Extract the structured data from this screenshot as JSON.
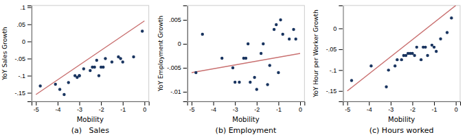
{
  "chart_data": [
    {
      "type": "scatter",
      "title": "(a)   Sales",
      "xlabel": "Mobility",
      "ylabel": "YoY Sales Growth",
      "xlim": [
        -5.2,
        0.2
      ],
      "ylim": [
        -0.175,
        0.105
      ],
      "xticks": [
        -5,
        -4,
        -3,
        -2,
        -1,
        0
      ],
      "yticks": [
        {
          "value": -0.15,
          "label": "-.15"
        },
        {
          "value": -0.1,
          "label": "-.1"
        },
        {
          "value": -0.05,
          "label": "-.05"
        },
        0,
        {
          "value": 0.05,
          "label": ".05"
        },
        {
          "value": 0.1,
          "label": ".1"
        }
      ],
      "grid": false,
      "series": [
        {
          "type": "scatter",
          "color": "#1a3560",
          "x": [
            -4.8,
            -4.1,
            -3.9,
            -3.7,
            -3.5,
            -3.2,
            -3.1,
            -3.0,
            -3.0,
            -2.8,
            -2.5,
            -2.4,
            -2.3,
            -2.2,
            -2.1,
            -2.0,
            -1.9,
            -1.8,
            -1.5,
            -1.2,
            -1.1,
            -1.0,
            -0.5,
            -0.1
          ],
          "values": [
            -0.13,
            -0.125,
            -0.14,
            -0.155,
            -0.12,
            -0.1,
            -0.105,
            -0.1,
            -0.1,
            -0.08,
            -0.085,
            -0.075,
            -0.075,
            -0.055,
            -0.1,
            -0.075,
            -0.075,
            -0.05,
            -0.06,
            -0.045,
            -0.05,
            -0.06,
            -0.045,
            0.03
          ]
        },
        {
          "type": "line",
          "color": "#c97070",
          "x": [
            -5.0,
            0.0
          ],
          "values": [
            -0.155,
            0.06
          ]
        }
      ]
    },
    {
      "type": "scatter",
      "title": "(b) Employment",
      "xlabel": "Mobility",
      "ylabel": "YoY Employment Growth",
      "xlim": [
        -5.2,
        0.2
      ],
      "ylim": [
        -0.012,
        0.008
      ],
      "xticks": [
        -5,
        -4,
        -3,
        -2,
        -1,
        0
      ],
      "yticks": [
        {
          "value": -0.01,
          "label": "-.01"
        },
        {
          "value": -0.005,
          "label": "-.005"
        },
        0,
        {
          "value": 0.005,
          "label": ".005"
        }
      ],
      "grid": false,
      "series": [
        {
          "type": "scatter",
          "color": "#1a3560",
          "x": [
            -4.8,
            -4.5,
            -3.6,
            -3.1,
            -3.0,
            -2.8,
            -2.6,
            -2.5,
            -2.4,
            -2.3,
            -2.1,
            -2.0,
            -1.8,
            -1.7,
            -1.5,
            -1.4,
            -1.2,
            -1.1,
            -1.0,
            -0.9,
            -0.8,
            -0.5,
            -0.3,
            -0.2
          ],
          "values": [
            -0.006,
            0.002,
            -0.003,
            -0.005,
            -0.008,
            -0.008,
            -0.003,
            -0.003,
            0.0,
            -0.008,
            -0.007,
            -0.0095,
            -0.002,
            0.0,
            -0.0085,
            -0.0045,
            0.003,
            0.004,
            -0.006,
            0.005,
            0.002,
            0.001,
            0.003,
            0.001
          ]
        },
        {
          "type": "line",
          "color": "#c97070",
          "x": [
            -5.0,
            0.0
          ],
          "values": [
            -0.006,
            -0.002
          ]
        }
      ]
    },
    {
      "type": "scatter",
      "title": "(c) Hours worked",
      "xlabel": "Mobility",
      "ylabel": "YoY Hour per Worker Growth",
      "xlim": [
        -5.2,
        0.2
      ],
      "ylim": [
        -0.175,
        0.055
      ],
      "xticks": [
        -5,
        -4,
        -3,
        -2,
        -1,
        0
      ],
      "yticks": [
        {
          "value": -0.15,
          "label": "-.15"
        },
        {
          "value": -0.1,
          "label": "-.1"
        },
        {
          "value": -0.05,
          "label": "-.05"
        },
        0
      ],
      "grid": false,
      "series": [
        {
          "type": "scatter",
          "color": "#1a3560",
          "x": [
            -4.8,
            -3.9,
            -3.2,
            -3.1,
            -2.8,
            -2.7,
            -2.5,
            -2.4,
            -2.3,
            -2.2,
            -2.1,
            -2.0,
            -1.9,
            -1.8,
            -1.6,
            -1.5,
            -1.4,
            -1.3,
            -1.1,
            -1.0,
            -0.9,
            -0.7,
            -0.4,
            -0.2
          ],
          "values": [
            -0.125,
            -0.09,
            -0.14,
            -0.1,
            -0.09,
            -0.075,
            -0.075,
            -0.065,
            -0.065,
            -0.06,
            -0.06,
            -0.06,
            -0.065,
            -0.045,
            -0.075,
            -0.045,
            -0.045,
            -0.065,
            -0.04,
            -0.045,
            -0.055,
            -0.025,
            -0.01,
            0.025
          ]
        },
        {
          "type": "line",
          "color": "#c97070",
          "x": [
            -5.0,
            0.0
          ],
          "values": [
            -0.15,
            0.055
          ]
        }
      ]
    }
  ]
}
